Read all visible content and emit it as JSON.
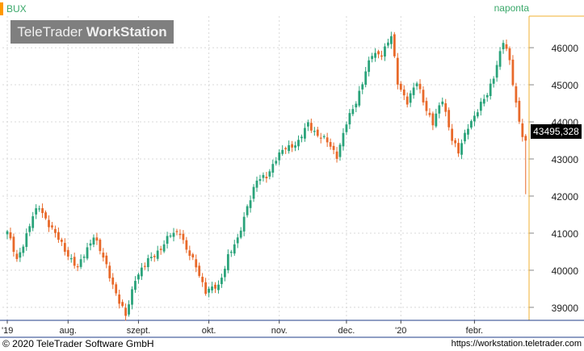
{
  "header": {
    "symbol": "BUX",
    "interval": "naponta",
    "watermark_light": "TeleTrader",
    "watermark_bold": "WorkStation",
    "last_price": "43495,328"
  },
  "footer": {
    "copyright": "© 2020 TeleTrader Software GmbH",
    "website": "https://workstation.teletrader.com"
  },
  "colors": {
    "up": "#2aa37a",
    "down": "#e8692a",
    "axis_accent": "#f0b030",
    "grid": "#d8d8d8",
    "bottom_axis": "#1f3c88"
  },
  "chart_data": {
    "type": "candlestick",
    "y_axis": {
      "ticks": [
        39000,
        40000,
        41000,
        42000,
        43000,
        44000,
        45000,
        46000
      ],
      "tick_labels": [
        "39000",
        "40000",
        "41000",
        "42000",
        "43000",
        "44000",
        "45000",
        "46000"
      ],
      "ylim": [
        38650,
        46850
      ],
      "position": "right"
    },
    "x_axis": {
      "labels": [
        "'19",
        "aug.",
        "szept.",
        "okt.",
        "nov.",
        "dec.",
        "'20",
        "febr."
      ]
    },
    "grid": true,
    "last_value": 43495.328,
    "close_path": [
      {
        "d": 0,
        "c": 41050
      },
      {
        "d": 3,
        "c": 40250
      },
      {
        "d": 8,
        "c": 41450
      },
      {
        "d": 10,
        "c": 41700
      },
      {
        "d": 13,
        "c": 41250
      },
      {
        "d": 18,
        "c": 40550
      },
      {
        "d": 22,
        "c": 40050
      },
      {
        "d": 27,
        "c": 40950
      },
      {
        "d": 31,
        "c": 40100
      },
      {
        "d": 35,
        "c": 39150
      },
      {
        "d": 37,
        "c": 38750
      },
      {
        "d": 40,
        "c": 39800
      },
      {
        "d": 44,
        "c": 40250
      },
      {
        "d": 48,
        "c": 40600
      },
      {
        "d": 51,
        "c": 40950
      },
      {
        "d": 54,
        "c": 41050
      },
      {
        "d": 56,
        "c": 40550
      },
      {
        "d": 59,
        "c": 40100
      },
      {
        "d": 62,
        "c": 39450
      },
      {
        "d": 66,
        "c": 39550
      },
      {
        "d": 69,
        "c": 40400
      },
      {
        "d": 72,
        "c": 40800
      },
      {
        "d": 75,
        "c": 41750
      },
      {
        "d": 78,
        "c": 42400
      },
      {
        "d": 81,
        "c": 42550
      },
      {
        "d": 84,
        "c": 43000
      },
      {
        "d": 87,
        "c": 43300
      },
      {
        "d": 91,
        "c": 43450
      },
      {
        "d": 94,
        "c": 43950
      },
      {
        "d": 97,
        "c": 43650
      },
      {
        "d": 100,
        "c": 43450
      },
      {
        "d": 103,
        "c": 43100
      },
      {
        "d": 106,
        "c": 43950
      },
      {
        "d": 109,
        "c": 44550
      },
      {
        "d": 112,
        "c": 45350
      },
      {
        "d": 114,
        "c": 45800
      },
      {
        "d": 117,
        "c": 45850
      },
      {
        "d": 120,
        "c": 46300
      },
      {
        "d": 122,
        "c": 45050
      },
      {
        "d": 125,
        "c": 44550
      },
      {
        "d": 128,
        "c": 45050
      },
      {
        "d": 131,
        "c": 44350
      },
      {
        "d": 133,
        "c": 43950
      },
      {
        "d": 136,
        "c": 44600
      },
      {
        "d": 139,
        "c": 43550
      },
      {
        "d": 141,
        "c": 43150
      },
      {
        "d": 144,
        "c": 43900
      },
      {
        "d": 147,
        "c": 44300
      },
      {
        "d": 150,
        "c": 44750
      },
      {
        "d": 152,
        "c": 45250
      },
      {
        "d": 155,
        "c": 46150
      },
      {
        "d": 157,
        "c": 45650
      },
      {
        "d": 159,
        "c": 44500
      },
      {
        "d": 161,
        "c": 43600
      },
      {
        "d": 162,
        "c": 43495
      }
    ],
    "x_label_days": [
      0,
      19,
      41,
      63,
      85,
      106,
      123,
      146
    ],
    "day_count": 163
  }
}
